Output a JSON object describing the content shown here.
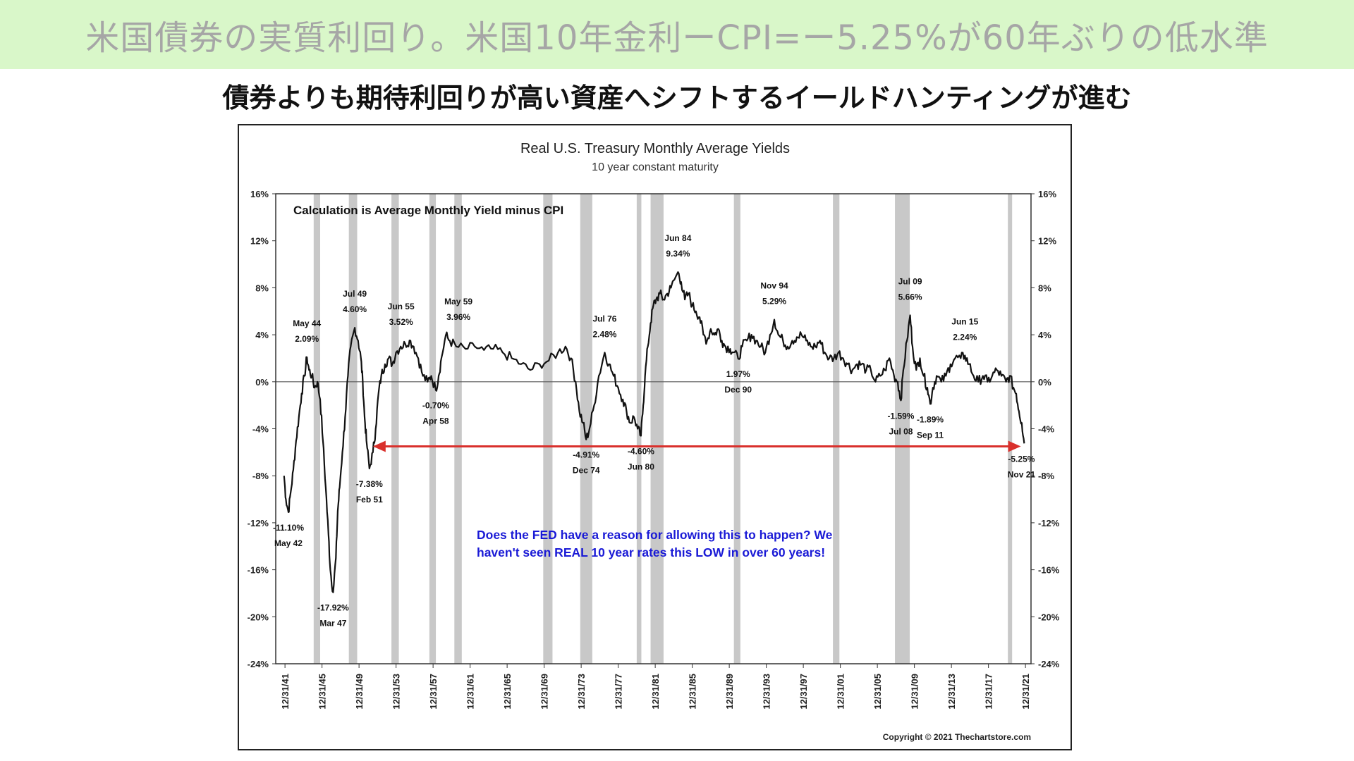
{
  "page": {
    "title": "米国債券の実質利回り。米国10年金利ーCPI=ー5.25%が60年ぶりの低水準",
    "subtitle": "債券よりも期待利回りが高い資産へシフトするイールドハンティングが進む"
  },
  "chart_data": {
    "type": "line",
    "title": "Real U.S. Treasury Monthly Average Yields",
    "subtitle": "10 year constant maturity",
    "note": "Calculation is Average Monthly Yield minus CPI",
    "annotation": "Does the FED have a reason for allowing this to happen?  We haven't seen REAL 10 year rates this LOW in over 60 years!",
    "annotation_lines": [
      "Does the FED have a reason for allowing this to happen?  We",
      "haven't seen REAL 10 year rates this LOW in over 60 years!"
    ],
    "copyright": "Copyright © 2021 Thechartstore.com",
    "xlim": [
      1941.0,
      2022.6
    ],
    "ylim": [
      -24,
      16
    ],
    "y_ticks": [
      16,
      12,
      8,
      4,
      0,
      -4,
      -8,
      -12,
      -16,
      -20,
      -24
    ],
    "y_tick_labels": [
      "16%",
      "12%",
      "8%",
      "4%",
      "0%",
      "-4%",
      "-8%",
      "-12%",
      "-16%",
      "-20%",
      "-24%"
    ],
    "x_ticks": [
      1942,
      1946,
      1950,
      1954,
      1958,
      1962,
      1966,
      1970,
      1974,
      1978,
      1982,
      1986,
      1990,
      1994,
      1998,
      2002,
      2006,
      2010,
      2014,
      2018,
      2022
    ],
    "x_tick_labels": [
      "12/31/41",
      "12/31/45",
      "12/31/49",
      "12/31/53",
      "12/31/57",
      "12/31/61",
      "12/31/65",
      "12/31/69",
      "12/31/73",
      "12/31/77",
      "12/31/81",
      "12/31/85",
      "12/31/89",
      "12/31/93",
      "12/31/97",
      "12/31/01",
      "12/31/05",
      "12/31/09",
      "12/31/13",
      "12/31/17",
      "12/31/21"
    ],
    "recessions": [
      [
        1945.1,
        1945.8
      ],
      [
        1948.9,
        1949.8
      ],
      [
        1953.5,
        1954.3
      ],
      [
        1957.6,
        1958.3
      ],
      [
        1960.3,
        1961.1
      ],
      [
        1969.9,
        1970.9
      ],
      [
        1973.9,
        1975.2
      ],
      [
        1980.0,
        1980.5
      ],
      [
        1981.5,
        1982.9
      ],
      [
        1990.5,
        1991.2
      ],
      [
        2001.2,
        2001.9
      ],
      [
        2007.9,
        2009.5
      ],
      [
        2020.1,
        2020.4
      ]
    ],
    "zero_line": 0,
    "series": [
      {
        "values": [
          [
            1941.9,
            -8.0
          ],
          [
            1942.1,
            -10.0
          ],
          [
            1942.37,
            -11.1
          ],
          [
            1942.6,
            -9.5
          ],
          [
            1942.9,
            -7.5
          ],
          [
            1943.2,
            -5.0
          ],
          [
            1943.5,
            -3.0
          ],
          [
            1943.8,
            -1.0
          ],
          [
            1944.1,
            0.5
          ],
          [
            1944.37,
            2.09
          ],
          [
            1944.6,
            1.0
          ],
          [
            1944.9,
            0.5
          ],
          [
            1945.2,
            -0.5
          ],
          [
            1945.5,
            0.0
          ],
          [
            1945.8,
            -1.5
          ],
          [
            1946.1,
            -5.0
          ],
          [
            1946.4,
            -9.0
          ],
          [
            1946.7,
            -13.0
          ],
          [
            1946.9,
            -16.0
          ],
          [
            1947.2,
            -17.92
          ],
          [
            1947.5,
            -15.0
          ],
          [
            1947.7,
            -11.0
          ],
          [
            1947.9,
            -9.0
          ],
          [
            1948.2,
            -6.0
          ],
          [
            1948.5,
            -3.0
          ],
          [
            1948.8,
            0.5
          ],
          [
            1949.1,
            3.0
          ],
          [
            1949.54,
            4.6
          ],
          [
            1949.9,
            3.5
          ],
          [
            1950.2,
            2.0
          ],
          [
            1950.4,
            0.0
          ],
          [
            1950.6,
            -3.0
          ],
          [
            1950.8,
            -5.0
          ],
          [
            1951.12,
            -7.38
          ],
          [
            1951.5,
            -6.0
          ],
          [
            1951.8,
            -4.0
          ],
          [
            1952.1,
            -1.0
          ],
          [
            1952.4,
            0.5
          ],
          [
            1952.8,
            1.5
          ],
          [
            1953.2,
            2.0
          ],
          [
            1953.6,
            1.5
          ],
          [
            1954.0,
            2.5
          ],
          [
            1954.5,
            3.0
          ],
          [
            1955.0,
            3.2
          ],
          [
            1955.45,
            3.52
          ],
          [
            1955.9,
            3.0
          ],
          [
            1956.4,
            2.0
          ],
          [
            1956.9,
            0.5
          ],
          [
            1957.4,
            0.0
          ],
          [
            1957.8,
            0.5
          ],
          [
            1958.29,
            -0.7
          ],
          [
            1958.6,
            0.5
          ],
          [
            1958.9,
            2.0
          ],
          [
            1959.37,
            3.96
          ],
          [
            1959.8,
            3.5
          ],
          [
            1960.5,
            3.0
          ],
          [
            1961.5,
            2.8
          ],
          [
            1962.5,
            3.0
          ],
          [
            1963.5,
            2.7
          ],
          [
            1964.5,
            2.8
          ],
          [
            1965.5,
            2.5
          ],
          [
            1966.5,
            2.0
          ],
          [
            1967.5,
            1.5
          ],
          [
            1968.5,
            1.0
          ],
          [
            1969.5,
            1.5
          ],
          [
            1970.5,
            1.8
          ],
          [
            1971.5,
            2.5
          ],
          [
            1972.3,
            3.0
          ],
          [
            1972.9,
            2.0
          ],
          [
            1973.4,
            0.0
          ],
          [
            1973.8,
            -2.5
          ],
          [
            1974.2,
            -3.5
          ],
          [
            1974.54,
            -4.91
          ],
          [
            1974.9,
            -4.0
          ],
          [
            1975.4,
            -2.0
          ],
          [
            1975.9,
            0.5
          ],
          [
            1976.54,
            2.48
          ],
          [
            1977.0,
            1.5
          ],
          [
            1977.5,
            0.5
          ],
          [
            1978.0,
            -0.5
          ],
          [
            1978.5,
            -1.5
          ],
          [
            1978.9,
            -2.5
          ],
          [
            1979.3,
            -3.5
          ],
          [
            1979.7,
            -3.0
          ],
          [
            1980.1,
            -4.0
          ],
          [
            1980.46,
            -4.6
          ],
          [
            1980.7,
            -2.0
          ],
          [
            1980.9,
            0.5
          ],
          [
            1981.2,
            3.0
          ],
          [
            1981.5,
            5.0
          ],
          [
            1981.8,
            6.5
          ],
          [
            1982.1,
            7.0
          ],
          [
            1982.5,
            7.5
          ],
          [
            1982.9,
            7.0
          ],
          [
            1983.3,
            7.5
          ],
          [
            1983.7,
            8.0
          ],
          [
            1984.46,
            9.34
          ],
          [
            1984.8,
            8.5
          ],
          [
            1985.2,
            7.0
          ],
          [
            1985.6,
            7.5
          ],
          [
            1986.0,
            6.5
          ],
          [
            1986.4,
            6.0
          ],
          [
            1986.8,
            5.5
          ],
          [
            1987.2,
            4.0
          ],
          [
            1987.6,
            3.5
          ],
          [
            1988.0,
            4.5
          ],
          [
            1988.4,
            4.0
          ],
          [
            1988.8,
            4.5
          ],
          [
            1989.2,
            3.5
          ],
          [
            1989.6,
            3.0
          ],
          [
            1990.1,
            2.8
          ],
          [
            1990.46,
            2.5
          ],
          [
            1990.96,
            1.97
          ],
          [
            1991.4,
            3.0
          ],
          [
            1991.9,
            3.5
          ],
          [
            1992.4,
            4.0
          ],
          [
            1992.9,
            3.5
          ],
          [
            1993.4,
            3.0
          ],
          [
            1993.9,
            2.5
          ],
          [
            1994.4,
            4.0
          ],
          [
            1994.87,
            5.29
          ],
          [
            1995.3,
            4.0
          ],
          [
            1995.8,
            3.5
          ],
          [
            1996.3,
            3.0
          ],
          [
            1996.8,
            3.5
          ],
          [
            1997.3,
            3.8
          ],
          [
            1997.8,
            4.0
          ],
          [
            1998.3,
            3.5
          ],
          [
            1998.8,
            3.0
          ],
          [
            1999.3,
            3.0
          ],
          [
            1999.8,
            3.5
          ],
          [
            2000.3,
            2.5
          ],
          [
            2000.8,
            2.0
          ],
          [
            2001.3,
            2.0
          ],
          [
            2001.8,
            2.5
          ],
          [
            2002.3,
            2.0
          ],
          [
            2002.8,
            1.5
          ],
          [
            2003.3,
            1.0
          ],
          [
            2003.8,
            1.5
          ],
          [
            2004.3,
            1.5
          ],
          [
            2004.8,
            1.0
          ],
          [
            2005.3,
            1.0
          ],
          [
            2005.8,
            0.0
          ],
          [
            2006.3,
            0.5
          ],
          [
            2006.8,
            1.0
          ],
          [
            2007.3,
            2.0
          ],
          [
            2007.8,
            0.5
          ],
          [
            2008.2,
            0.0
          ],
          [
            2008.54,
            -1.59
          ],
          [
            2008.8,
            1.0
          ],
          [
            2009.2,
            3.5
          ],
          [
            2009.54,
            5.66
          ],
          [
            2009.8,
            3.0
          ],
          [
            2010.2,
            1.0
          ],
          [
            2010.6,
            2.0
          ],
          [
            2011.0,
            0.5
          ],
          [
            2011.4,
            -0.5
          ],
          [
            2011.71,
            -1.89
          ],
          [
            2012.0,
            -0.5
          ],
          [
            2012.4,
            0.5
          ],
          [
            2012.9,
            0.0
          ],
          [
            2013.4,
            0.5
          ],
          [
            2013.9,
            1.5
          ],
          [
            2014.4,
            2.0
          ],
          [
            2015.0,
            2.0
          ],
          [
            2015.46,
            2.24
          ],
          [
            2015.9,
            1.5
          ],
          [
            2016.4,
            0.5
          ],
          [
            2016.9,
            0.0
          ],
          [
            2017.4,
            0.5
          ],
          [
            2017.9,
            0.0
          ],
          [
            2018.4,
            0.5
          ],
          [
            2018.9,
            1.0
          ],
          [
            2019.4,
            0.5
          ],
          [
            2019.9,
            0.0
          ],
          [
            2020.3,
            0.5
          ],
          [
            2020.7,
            -0.5
          ],
          [
            2021.0,
            -1.0
          ],
          [
            2021.3,
            -2.5
          ],
          [
            2021.6,
            -3.5
          ],
          [
            2021.87,
            -5.25
          ]
        ]
      }
    ],
    "labels": [
      {
        "date": "May 42",
        "value": "-11.10%",
        "x": 1942.37,
        "y": -11.1,
        "pos": "below"
      },
      {
        "date": "May 44",
        "value": "2.09%",
        "x": 1944.37,
        "y": 2.09,
        "pos": "above"
      },
      {
        "date": "Mar 47",
        "value": "-17.92%",
        "x": 1947.2,
        "y": -17.92,
        "pos": "below"
      },
      {
        "date": "Jul 49",
        "value": "4.60%",
        "x": 1949.54,
        "y": 4.6,
        "pos": "above"
      },
      {
        "date": "Feb 51",
        "value": "-7.38%",
        "x": 1951.12,
        "y": -7.38,
        "pos": "below"
      },
      {
        "date": "Jun 55",
        "value": "3.52%",
        "x": 1955.45,
        "y": 3.52,
        "pos": "above"
      },
      {
        "date": "Apr 58",
        "value": "-0.70%",
        "x": 1958.29,
        "y": -0.7,
        "pos": "below"
      },
      {
        "date": "May 59",
        "value": "3.96%",
        "x": 1959.37,
        "y": 3.96,
        "pos": "above"
      },
      {
        "date": "Dec 74",
        "value": "-4.91%",
        "x": 1974.54,
        "y": -4.91,
        "pos": "below"
      },
      {
        "date": "Jul 76",
        "value": "2.48%",
        "x": 1976.54,
        "y": 2.48,
        "pos": "above"
      },
      {
        "date": "Jun 80",
        "value": "-4.60%",
        "x": 1980.46,
        "y": -4.6,
        "pos": "below"
      },
      {
        "date": "Jun 84",
        "value": "9.34%",
        "x": 1984.46,
        "y": 9.34,
        "pos": "above"
      },
      {
        "date": "Dec 90",
        "value": "1.97%",
        "x": 1990.96,
        "y": 1.97,
        "pos": "below"
      },
      {
        "date": "Nov 94",
        "value": "5.29%",
        "x": 1994.87,
        "y": 5.29,
        "pos": "above"
      },
      {
        "date": "Jul 08",
        "value": "-1.59%",
        "x": 2008.54,
        "y": -1.59,
        "pos": "below"
      },
      {
        "date": "Jul 09",
        "value": "5.66%",
        "x": 2009.54,
        "y": 5.66,
        "pos": "above"
      },
      {
        "date": "Sep 11",
        "value": "-1.89%",
        "x": 2011.71,
        "y": -1.89,
        "pos": "below"
      },
      {
        "date": "Jun 15",
        "value": "2.24%",
        "x": 2015.46,
        "y": 2.24,
        "pos": "above"
      },
      {
        "date": "Nov 21",
        "value": "-5.25%",
        "x": 2021.87,
        "y": -5.25,
        "pos": "below"
      }
    ],
    "arrow": {
      "from": [
        1951.5,
        -5.5
      ],
      "to": [
        2021.5,
        -5.5
      ],
      "color": "#d9302c"
    },
    "colors": {
      "line": "#111111",
      "recession": "#c8c8c8",
      "annotation": "#1a1ad6",
      "arrow": "#d9302c"
    }
  }
}
